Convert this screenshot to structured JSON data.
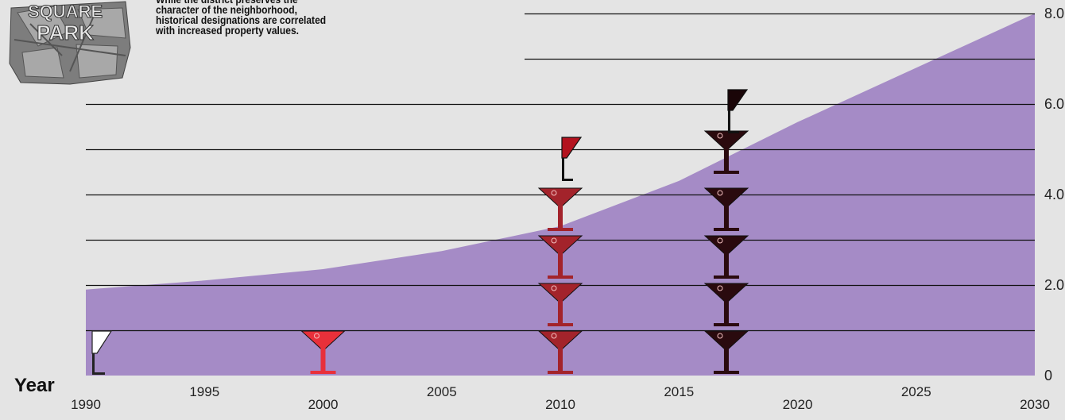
{
  "logo": {
    "line1": "SQUARE",
    "line2": "PARK"
  },
  "blurb": "While the district preserves the character of the neighborhood, historical designations are correlated with increased property values.",
  "xaxis_title": "Year",
  "colors": {
    "area": "#a58bc6",
    "pink_glass": "#e8303a",
    "red_glass": "#a3232b",
    "dark_glass": "#2a0a0e",
    "flag_white": "#ffffff",
    "flag_red": "#b3121e",
    "flag_dark": "#1a0508"
  },
  "chart_data": {
    "type": "area",
    "x_ticks": [
      1990,
      1995,
      2000,
      2005,
      2010,
      2015,
      2020,
      2025,
      2030
    ],
    "x_tick_labels": [
      "1990",
      "1995",
      "2000",
      "2005",
      "2010",
      "2015",
      "2020",
      "2025",
      "2030"
    ],
    "y_tick_labels": [
      "0",
      "2.0",
      "4.0",
      "6.0",
      "8.0"
    ],
    "y_ticks": [
      0,
      2,
      4,
      6,
      8
    ],
    "xlim": [
      1990,
      2030
    ],
    "ylim": [
      0,
      8
    ],
    "grid": true,
    "area": {
      "x": [
        1990,
        1995,
        2000,
        2005,
        2010,
        2015,
        2020,
        2025,
        2030
      ],
      "y": [
        1.9,
        2.1,
        2.35,
        2.75,
        3.3,
        4.3,
        5.6,
        6.8,
        8.0
      ]
    },
    "glass_stacks": [
      {
        "x": 2000,
        "count": 1,
        "color": "pink",
        "flag": "none"
      },
      {
        "x": 2010,
        "count": 4,
        "color": "red",
        "flag": "red"
      },
      {
        "x": 2017,
        "count": 5,
        "color": "dark",
        "flag": "dark"
      }
    ],
    "start_flag": {
      "x": 1990,
      "color": "white"
    }
  }
}
